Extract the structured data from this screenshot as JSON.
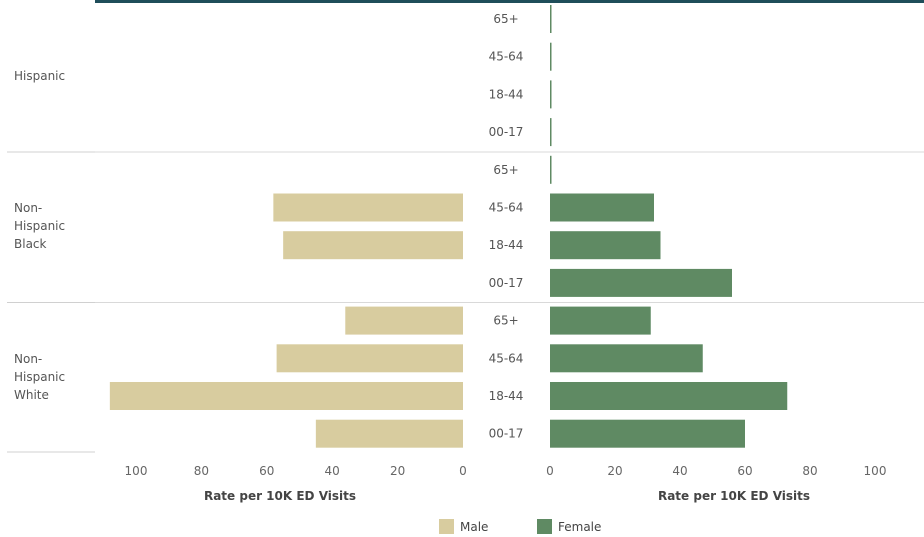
{
  "chart_data": {
    "type": "bar",
    "orientation": "horizontal",
    "layout": "population-pyramid",
    "groups": [
      {
        "name": "Hispanic",
        "label_lines": [
          "Hispanic"
        ]
      },
      {
        "name": "Non-Hispanic Black",
        "label_lines": [
          "Non-",
          "Hispanic",
          "Black"
        ]
      },
      {
        "name": "Non-Hispanic White",
        "label_lines": [
          "Non-",
          "Hispanic",
          "White"
        ]
      }
    ],
    "age_groups": [
      "65+",
      "45-64",
      "18-44",
      "00-17"
    ],
    "series": [
      {
        "name": "Male",
        "color": "#d8cc9f",
        "values": [
          [
            0,
            0,
            0,
            0
          ],
          [
            0,
            58,
            55,
            0
          ],
          [
            36,
            57,
            108,
            45
          ]
        ]
      },
      {
        "name": "Female",
        "color": "#5f8a63",
        "values": [
          [
            0,
            0,
            0,
            0
          ],
          [
            0,
            32,
            34,
            56
          ],
          [
            31,
            47,
            73,
            60
          ]
        ]
      }
    ],
    "male_axis": {
      "ticks": [
        100,
        80,
        60,
        40,
        20,
        0
      ],
      "range": [
        0,
        110
      ],
      "reversed": true,
      "title": "Rate per 10K ED Visits"
    },
    "female_axis": {
      "ticks": [
        0,
        20,
        40,
        60,
        80,
        100
      ],
      "range": [
        0,
        110
      ],
      "title": "Rate per 10K ED Visits"
    },
    "legend": {
      "position": "bottom",
      "items": [
        "Male",
        "Female"
      ]
    },
    "colors": {
      "male": "#d8cc9f",
      "female": "#5f8a63",
      "divider": "#cccccc",
      "accent": "#1f4e5a"
    }
  }
}
